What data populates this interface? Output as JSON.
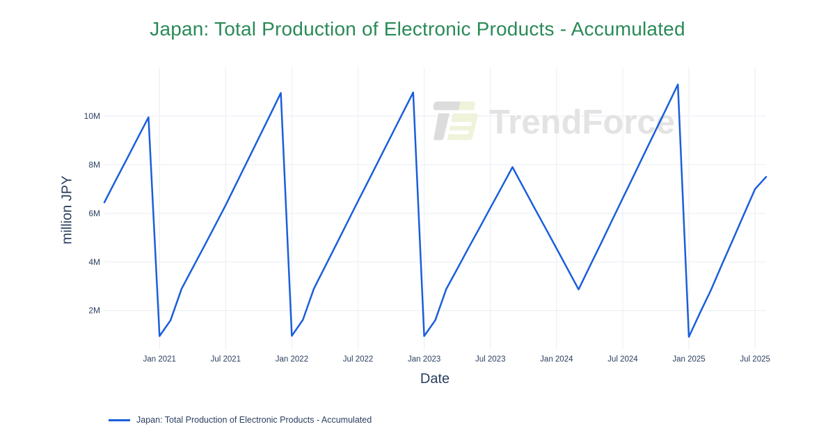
{
  "watermark": {
    "text": "TrendForce"
  },
  "colors": {
    "background": "#ffffff",
    "title": "#2a8a57",
    "label": "#2a3f5f",
    "grid": "#eef1f5",
    "line": "#1a5edb",
    "watermark_text": "#e3e3e3",
    "logo_gray": "#dcdcdc",
    "logo_green": "#eef3da"
  },
  "chart_data": {
    "type": "line",
    "title": "Japan: Total Production of Electronic Products - Accumulated",
    "xlabel": "Date",
    "ylabel": "million JPY",
    "grid": true,
    "legend_position": "bottom-left",
    "ylim": [
      0.39,
      12.0
    ],
    "y_ticks": [
      2,
      4,
      6,
      8,
      10
    ],
    "y_tick_labels": [
      "2M",
      "4M",
      "6M",
      "8M",
      "10M"
    ],
    "x_tick_indices": [
      5,
      11,
      17,
      23,
      29,
      35,
      41,
      47,
      53,
      59
    ],
    "x_tick_labels": [
      "Jan 2021",
      "Jul 2021",
      "Jan 2022",
      "Jul 2022",
      "Jan 2023",
      "Jul 2023",
      "Jan 2024",
      "Jul 2024",
      "Jan 2025",
      "Jul 2025"
    ],
    "x": [
      "2020-08",
      "2020-09",
      "2020-10",
      "2020-11",
      "2020-12",
      "2021-01",
      "2021-02",
      "2021-03",
      "2021-04",
      "2021-05",
      "2021-06",
      "2021-07",
      "2021-08",
      "2021-09",
      "2021-10",
      "2021-11",
      "2021-12",
      "2022-01",
      "2022-02",
      "2022-03",
      "2022-04",
      "2022-05",
      "2022-06",
      "2022-07",
      "2022-08",
      "2022-09",
      "2022-10",
      "2022-11",
      "2022-12",
      "2023-01",
      "2023-02",
      "2023-03",
      "2023-04",
      "2023-05",
      "2023-06",
      "2023-07",
      "2023-08",
      "2023-09",
      "2023-10",
      "2023-11",
      "2023-12",
      "2024-01",
      "2024-02",
      "2024-03",
      "2024-04",
      "2024-05",
      "2024-06",
      "2024-07",
      "2024-08",
      "2024-09",
      "2024-10",
      "2024-11",
      "2024-12",
      "2025-01",
      "2025-02",
      "2025-03",
      "2025-04",
      "2025-05",
      "2025-06",
      "2025-07",
      "2025-08"
    ],
    "series": [
      {
        "name": "Japan: Total Production of Electronic Products - Accumulated",
        "color": "#1a5edb",
        "unit": "million JPY",
        "values": [
          6.45,
          7.33,
          8.2,
          9.08,
          9.95,
          0.95,
          1.6,
          2.89,
          3.75,
          4.6,
          5.47,
          6.34,
          7.26,
          8.18,
          9.1,
          10.02,
          10.95,
          0.96,
          1.62,
          2.9,
          3.8,
          4.7,
          5.6,
          6.5,
          7.39,
          8.29,
          9.18,
          10.08,
          10.97,
          0.95,
          1.6,
          2.89,
          3.72,
          4.56,
          5.39,
          6.23,
          7.06,
          7.9,
          7.06,
          6.22,
          5.39,
          4.55,
          3.71,
          2.87,
          3.81,
          4.74,
          5.68,
          6.62,
          7.55,
          8.49,
          9.43,
          10.36,
          11.3,
          0.92,
          1.9,
          2.85,
          3.9,
          4.93,
          5.97,
          7.0,
          7.5
        ]
      }
    ]
  }
}
